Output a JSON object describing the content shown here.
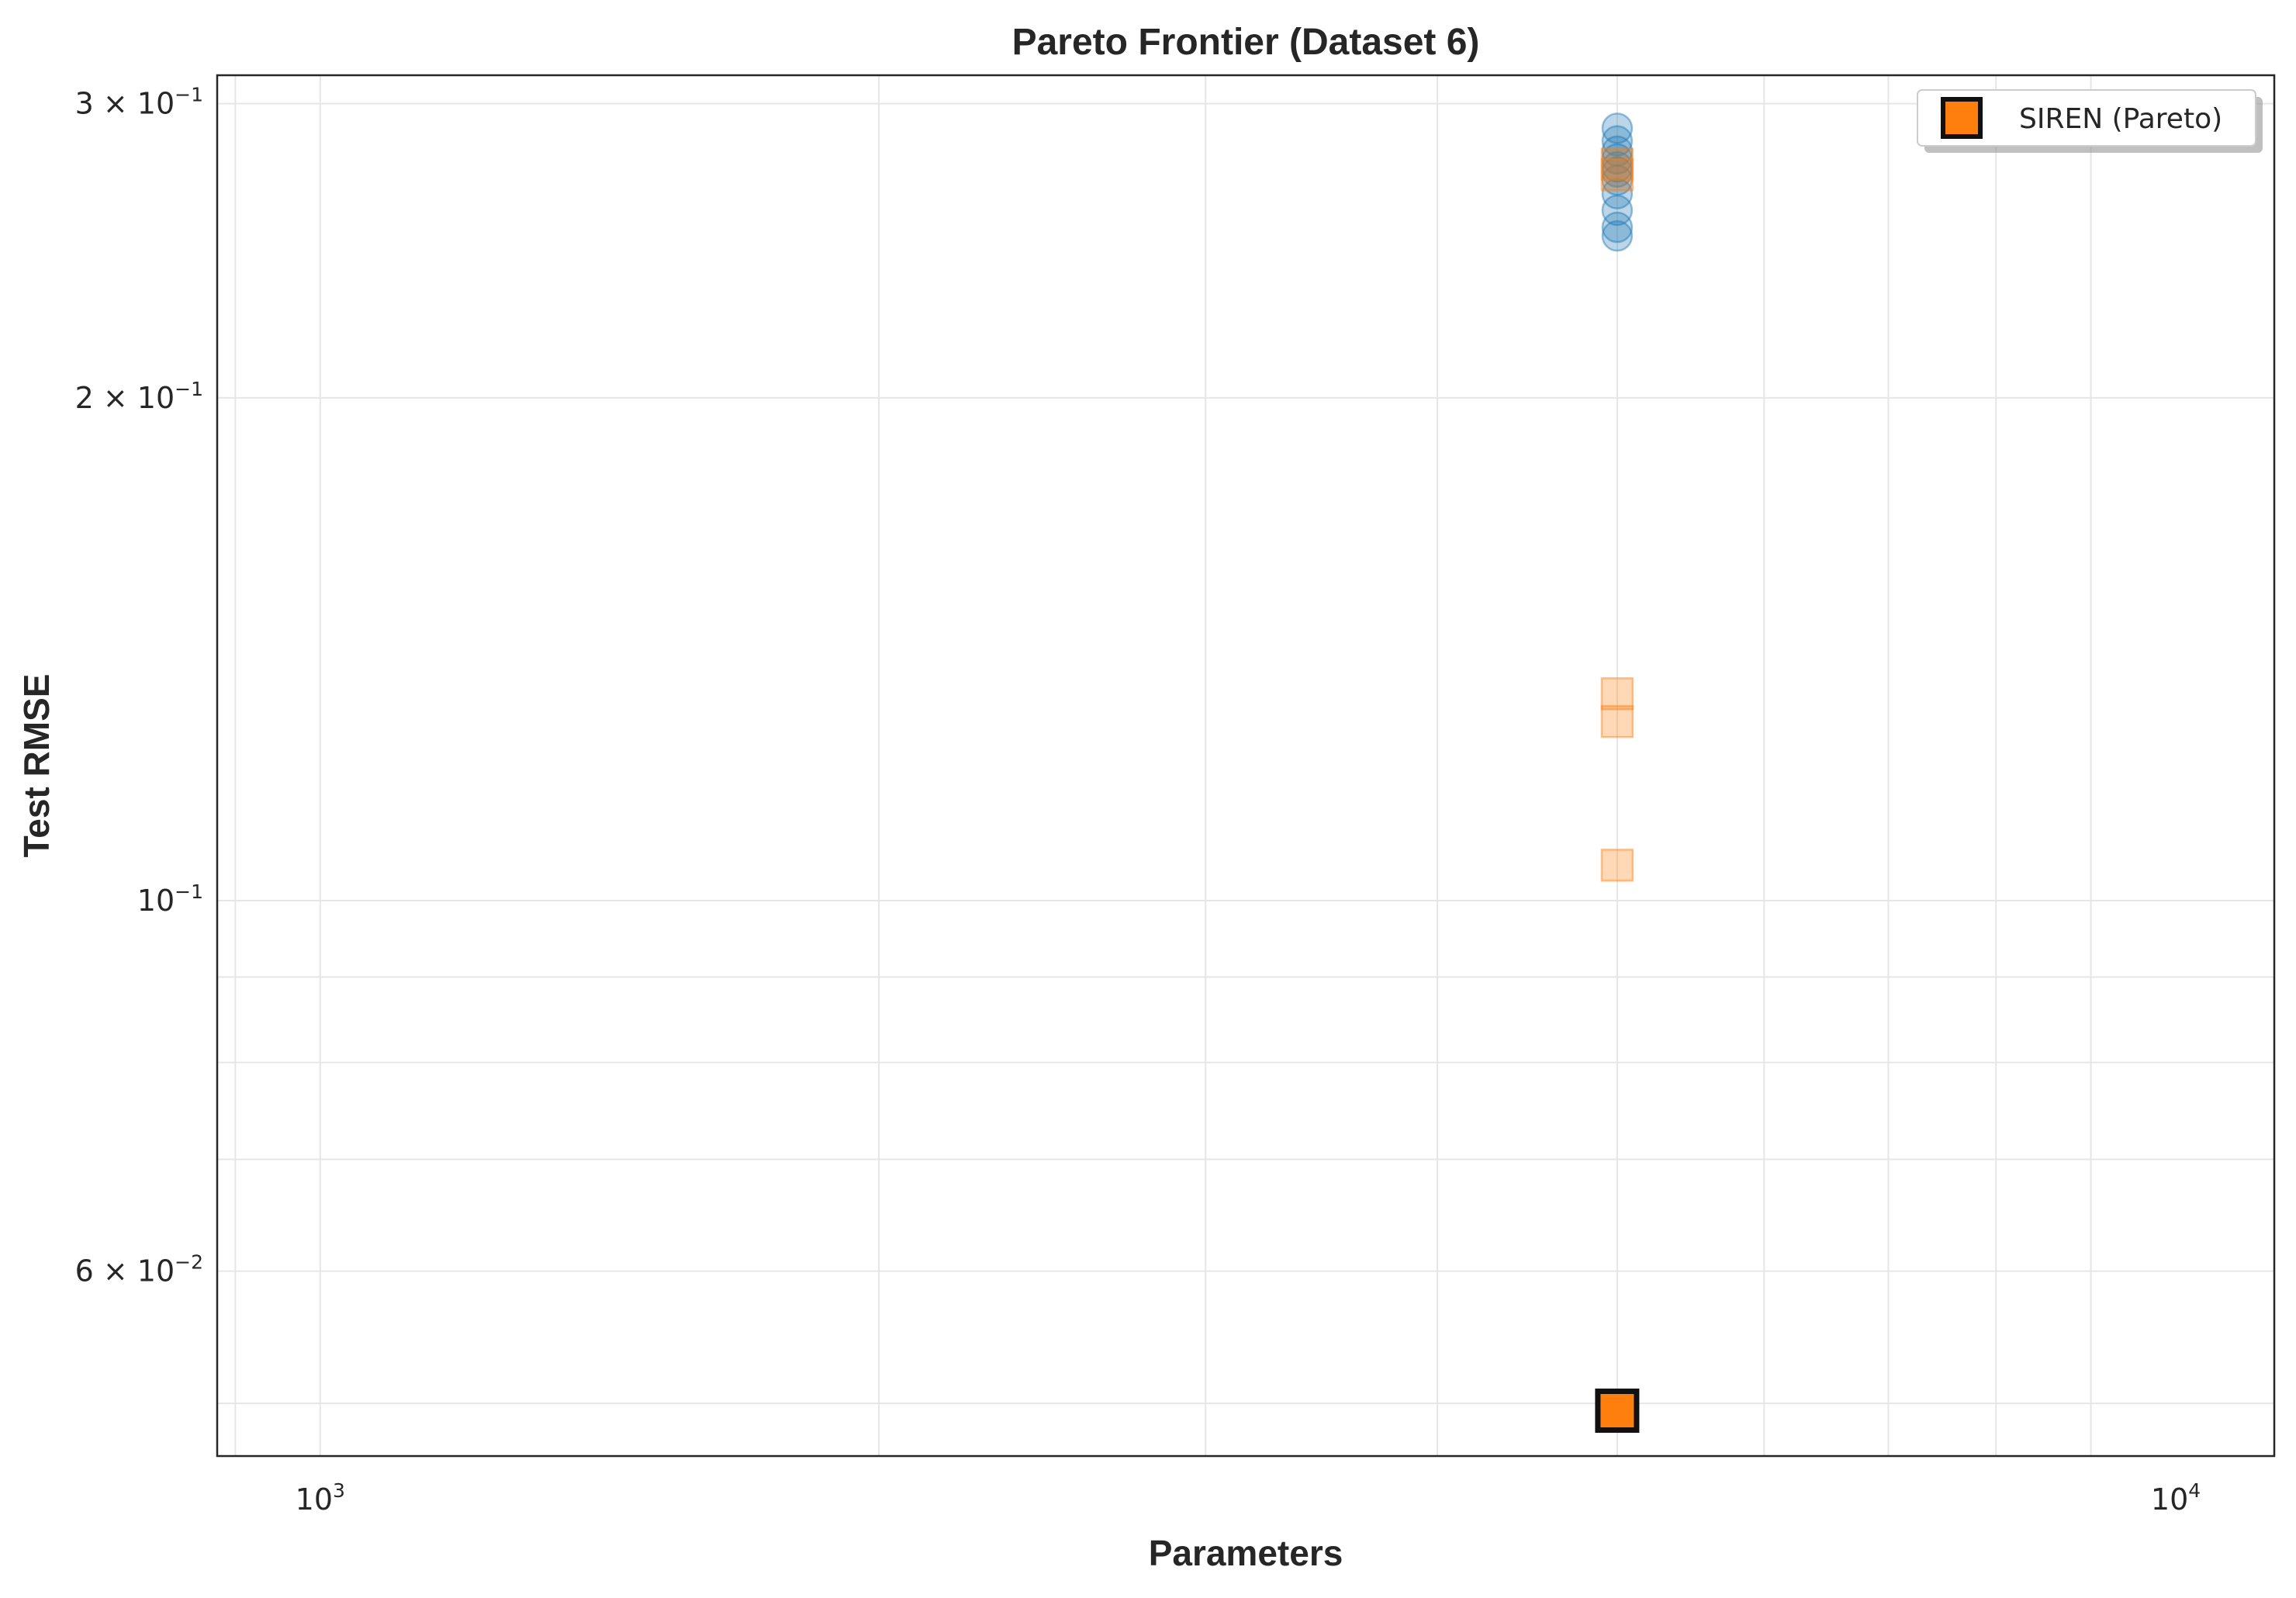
{
  "chart_data": {
    "type": "scatter",
    "title": "Pareto Frontier (Dataset 6)",
    "xlabel": "Parameters",
    "ylabel": "Test RMSE",
    "xscale": "log",
    "yscale": "log",
    "xlim": [
      880,
      11300
    ],
    "ylim": [
      0.0465,
      0.312
    ],
    "grid": true,
    "legend_position": "top-right",
    "x_ticks": [
      {
        "value": 1000,
        "base": "10",
        "exp": "3"
      },
      {
        "value": 10000,
        "base": "10",
        "exp": "4"
      }
    ],
    "y_ticks": [
      {
        "value": 0.3,
        "base": "3 × 10",
        "exp": "−1"
      },
      {
        "value": 0.2,
        "base": "2 × 10",
        "exp": "−1"
      },
      {
        "value": 0.1,
        "base": "10",
        "exp": "−1"
      },
      {
        "value": 0.06,
        "base": "6 × 10",
        "exp": "−2"
      }
    ],
    "series": [
      {
        "marker": "circle",
        "color": "#1f77b4",
        "opacity": 0.3,
        "points": [
          {
            "x": 5000,
            "y": 0.29
          },
          {
            "x": 5000,
            "y": 0.285
          },
          {
            "x": 5000,
            "y": 0.281
          },
          {
            "x": 5000,
            "y": 0.278
          },
          {
            "x": 5000,
            "y": 0.275
          },
          {
            "x": 5000,
            "y": 0.273
          },
          {
            "x": 5000,
            "y": 0.27
          },
          {
            "x": 5000,
            "y": 0.265
          },
          {
            "x": 5000,
            "y": 0.259
          },
          {
            "x": 5000,
            "y": 0.253
          },
          {
            "x": 5000,
            "y": 0.25
          }
        ]
      },
      {
        "marker": "square",
        "color": "#ff7f0e",
        "opacity": 0.3,
        "points": [
          {
            "x": 5000,
            "y": 0.276
          },
          {
            "x": 5000,
            "y": 0.272
          },
          {
            "x": 5000,
            "y": 0.133
          },
          {
            "x": 5000,
            "y": 0.128
          },
          {
            "x": 5000,
            "y": 0.105
          }
        ]
      },
      {
        "name": "SIREN (Pareto)",
        "marker": "square",
        "color": "#ff7f0e",
        "edge_color": "#111111",
        "opacity": 1,
        "points": [
          {
            "x": 5000,
            "y": 0.0495
          }
        ]
      }
    ]
  }
}
